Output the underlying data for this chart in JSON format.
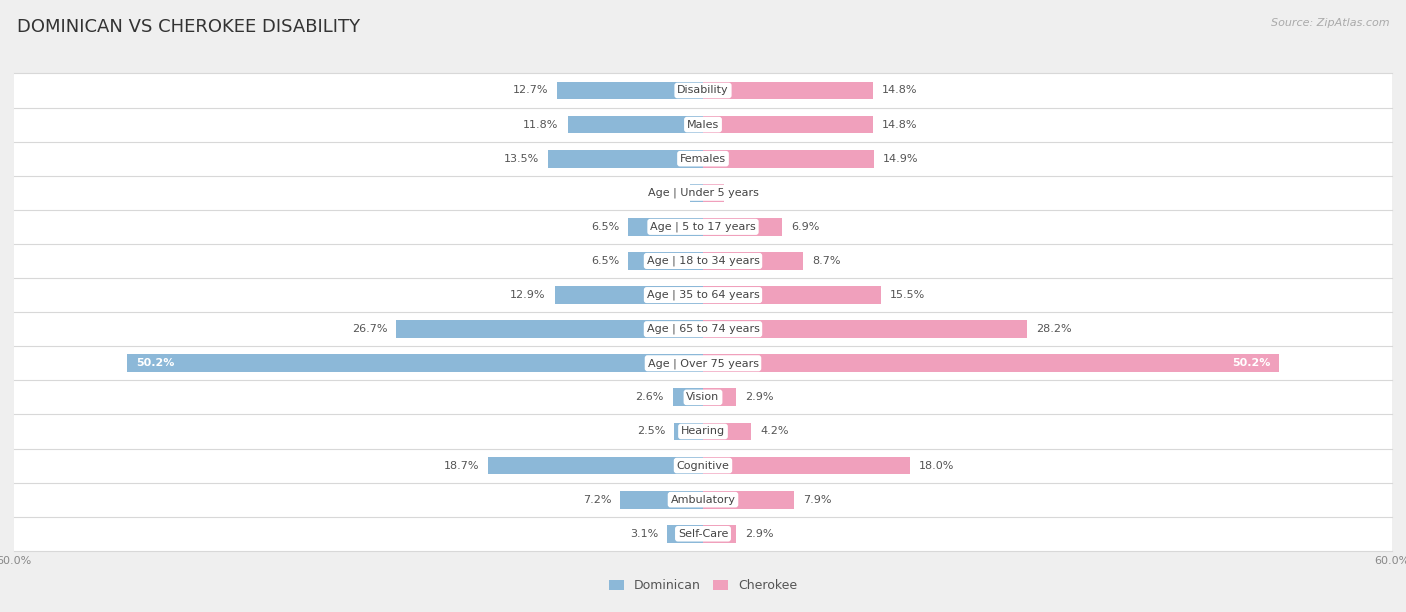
{
  "title": "DOMINICAN VS CHEROKEE DISABILITY",
  "source": "Source: ZipAtlas.com",
  "categories": [
    "Disability",
    "Males",
    "Females",
    "Age | Under 5 years",
    "Age | 5 to 17 years",
    "Age | 18 to 34 years",
    "Age | 35 to 64 years",
    "Age | 65 to 74 years",
    "Age | Over 75 years",
    "Vision",
    "Hearing",
    "Cognitive",
    "Ambulatory",
    "Self-Care"
  ],
  "dominican": [
    12.7,
    11.8,
    13.5,
    1.1,
    6.5,
    6.5,
    12.9,
    26.7,
    50.2,
    2.6,
    2.5,
    18.7,
    7.2,
    3.1
  ],
  "cherokee": [
    14.8,
    14.8,
    14.9,
    1.8,
    6.9,
    8.7,
    15.5,
    28.2,
    50.2,
    2.9,
    4.2,
    18.0,
    7.9,
    2.9
  ],
  "dominican_color": "#8cb8d8",
  "cherokee_color": "#f0a0bc",
  "dominican_highlight_color": "#5b9bd5",
  "cherokee_highlight_color": "#e96b8a",
  "background_color": "#efefef",
  "row_color": "#ffffff",
  "row_alt_color": "#f5f5f5",
  "axis_limit": 60.0,
  "bar_height": 0.52,
  "title_fontsize": 13,
  "label_fontsize": 8,
  "value_fontsize": 8,
  "tick_fontsize": 8,
  "legend_fontsize": 9
}
